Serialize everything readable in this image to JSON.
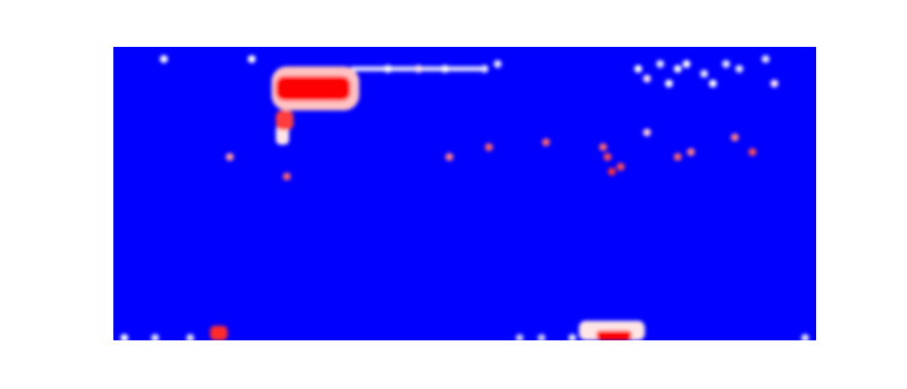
{
  "chart_data": {
    "type": "heatmap",
    "title": "",
    "xlabel": "",
    "ylabel": "",
    "axes_visible": false,
    "grid": false,
    "legend": "none",
    "colormap": {
      "low": "#0000ff",
      "mid": "#ffffff",
      "high": "#ff0000"
    },
    "background_value": 0.0,
    "cols": 160,
    "rows": 60,
    "xlim": [
      0,
      160
    ],
    "ylim": [
      0,
      60
    ],
    "hotspots": [
      {
        "name": "large-blob-core",
        "x": 37,
        "y": 49,
        "w": 17,
        "h": 5,
        "value": 1.0
      },
      {
        "name": "large-blob-halo",
        "x": 36,
        "y": 47,
        "w": 20,
        "h": 9,
        "value": 0.62
      },
      {
        "name": "large-blob-tail-upper",
        "x": 37,
        "y": 43,
        "w": 4,
        "h": 4,
        "value": 0.88
      },
      {
        "name": "large-blob-tail-lower",
        "x": 37,
        "y": 40,
        "w": 3,
        "h": 4,
        "value": 0.55
      },
      {
        "name": "trail-right",
        "x": 54,
        "y": 55,
        "w": 30,
        "h": 1,
        "value": 0.45
      },
      {
        "name": "bottom-left-hot",
        "x": 22,
        "y": 0,
        "w": 4,
        "h": 3,
        "value": 0.92
      },
      {
        "name": "bottom-center-hot-core",
        "x": 110,
        "y": 0,
        "w": 8,
        "h": 2,
        "value": 1.0
      },
      {
        "name": "bottom-center-hot-halo",
        "x": 106,
        "y": 0,
        "w": 15,
        "h": 4,
        "value": 0.55
      }
    ],
    "speckles": [
      {
        "x": 11,
        "y": 57,
        "value": 0.5
      },
      {
        "x": 31,
        "y": 57,
        "value": 0.5
      },
      {
        "x": 26,
        "y": 37,
        "value": 0.7
      },
      {
        "x": 39,
        "y": 33,
        "value": 0.8
      },
      {
        "x": 62,
        "y": 55,
        "value": 0.5
      },
      {
        "x": 69,
        "y": 55,
        "value": 0.55
      },
      {
        "x": 75,
        "y": 55,
        "value": 0.5
      },
      {
        "x": 84,
        "y": 55,
        "value": 0.45
      },
      {
        "x": 87,
        "y": 56,
        "value": 0.45
      },
      {
        "x": 76,
        "y": 37,
        "value": 0.75
      },
      {
        "x": 85,
        "y": 39,
        "value": 0.8
      },
      {
        "x": 98,
        "y": 40,
        "value": 0.8
      },
      {
        "x": 111,
        "y": 39,
        "value": 0.8
      },
      {
        "x": 112,
        "y": 37,
        "value": 0.85
      },
      {
        "x": 113,
        "y": 34,
        "value": 0.9
      },
      {
        "x": 115,
        "y": 35,
        "value": 0.85
      },
      {
        "x": 121,
        "y": 42,
        "value": 0.6
      },
      {
        "x": 128,
        "y": 37,
        "value": 0.8
      },
      {
        "x": 131,
        "y": 38,
        "value": 0.75
      },
      {
        "x": 141,
        "y": 41,
        "value": 0.75
      },
      {
        "x": 145,
        "y": 38,
        "value": 0.85
      },
      {
        "x": 119,
        "y": 55,
        "value": 0.5
      },
      {
        "x": 121,
        "y": 53,
        "value": 0.55
      },
      {
        "x": 124,
        "y": 56,
        "value": 0.45
      },
      {
        "x": 126,
        "y": 52,
        "value": 0.5
      },
      {
        "x": 128,
        "y": 55,
        "value": 0.5
      },
      {
        "x": 130,
        "y": 56,
        "value": 0.5
      },
      {
        "x": 134,
        "y": 54,
        "value": 0.45
      },
      {
        "x": 136,
        "y": 52,
        "value": 0.5
      },
      {
        "x": 139,
        "y": 56,
        "value": 0.45
      },
      {
        "x": 142,
        "y": 55,
        "value": 0.45
      },
      {
        "x": 150,
        "y": 52,
        "value": 0.55
      },
      {
        "x": 148,
        "y": 57,
        "value": 0.45
      },
      {
        "x": 2,
        "y": 0,
        "value": 0.5
      },
      {
        "x": 9,
        "y": 0,
        "value": 0.45
      },
      {
        "x": 17,
        "y": 0,
        "value": 0.45
      },
      {
        "x": 92,
        "y": 0,
        "value": 0.4
      },
      {
        "x": 97,
        "y": 0,
        "value": 0.4
      },
      {
        "x": 104,
        "y": 0,
        "value": 0.45
      },
      {
        "x": 157,
        "y": 0,
        "value": 0.45
      }
    ]
  }
}
